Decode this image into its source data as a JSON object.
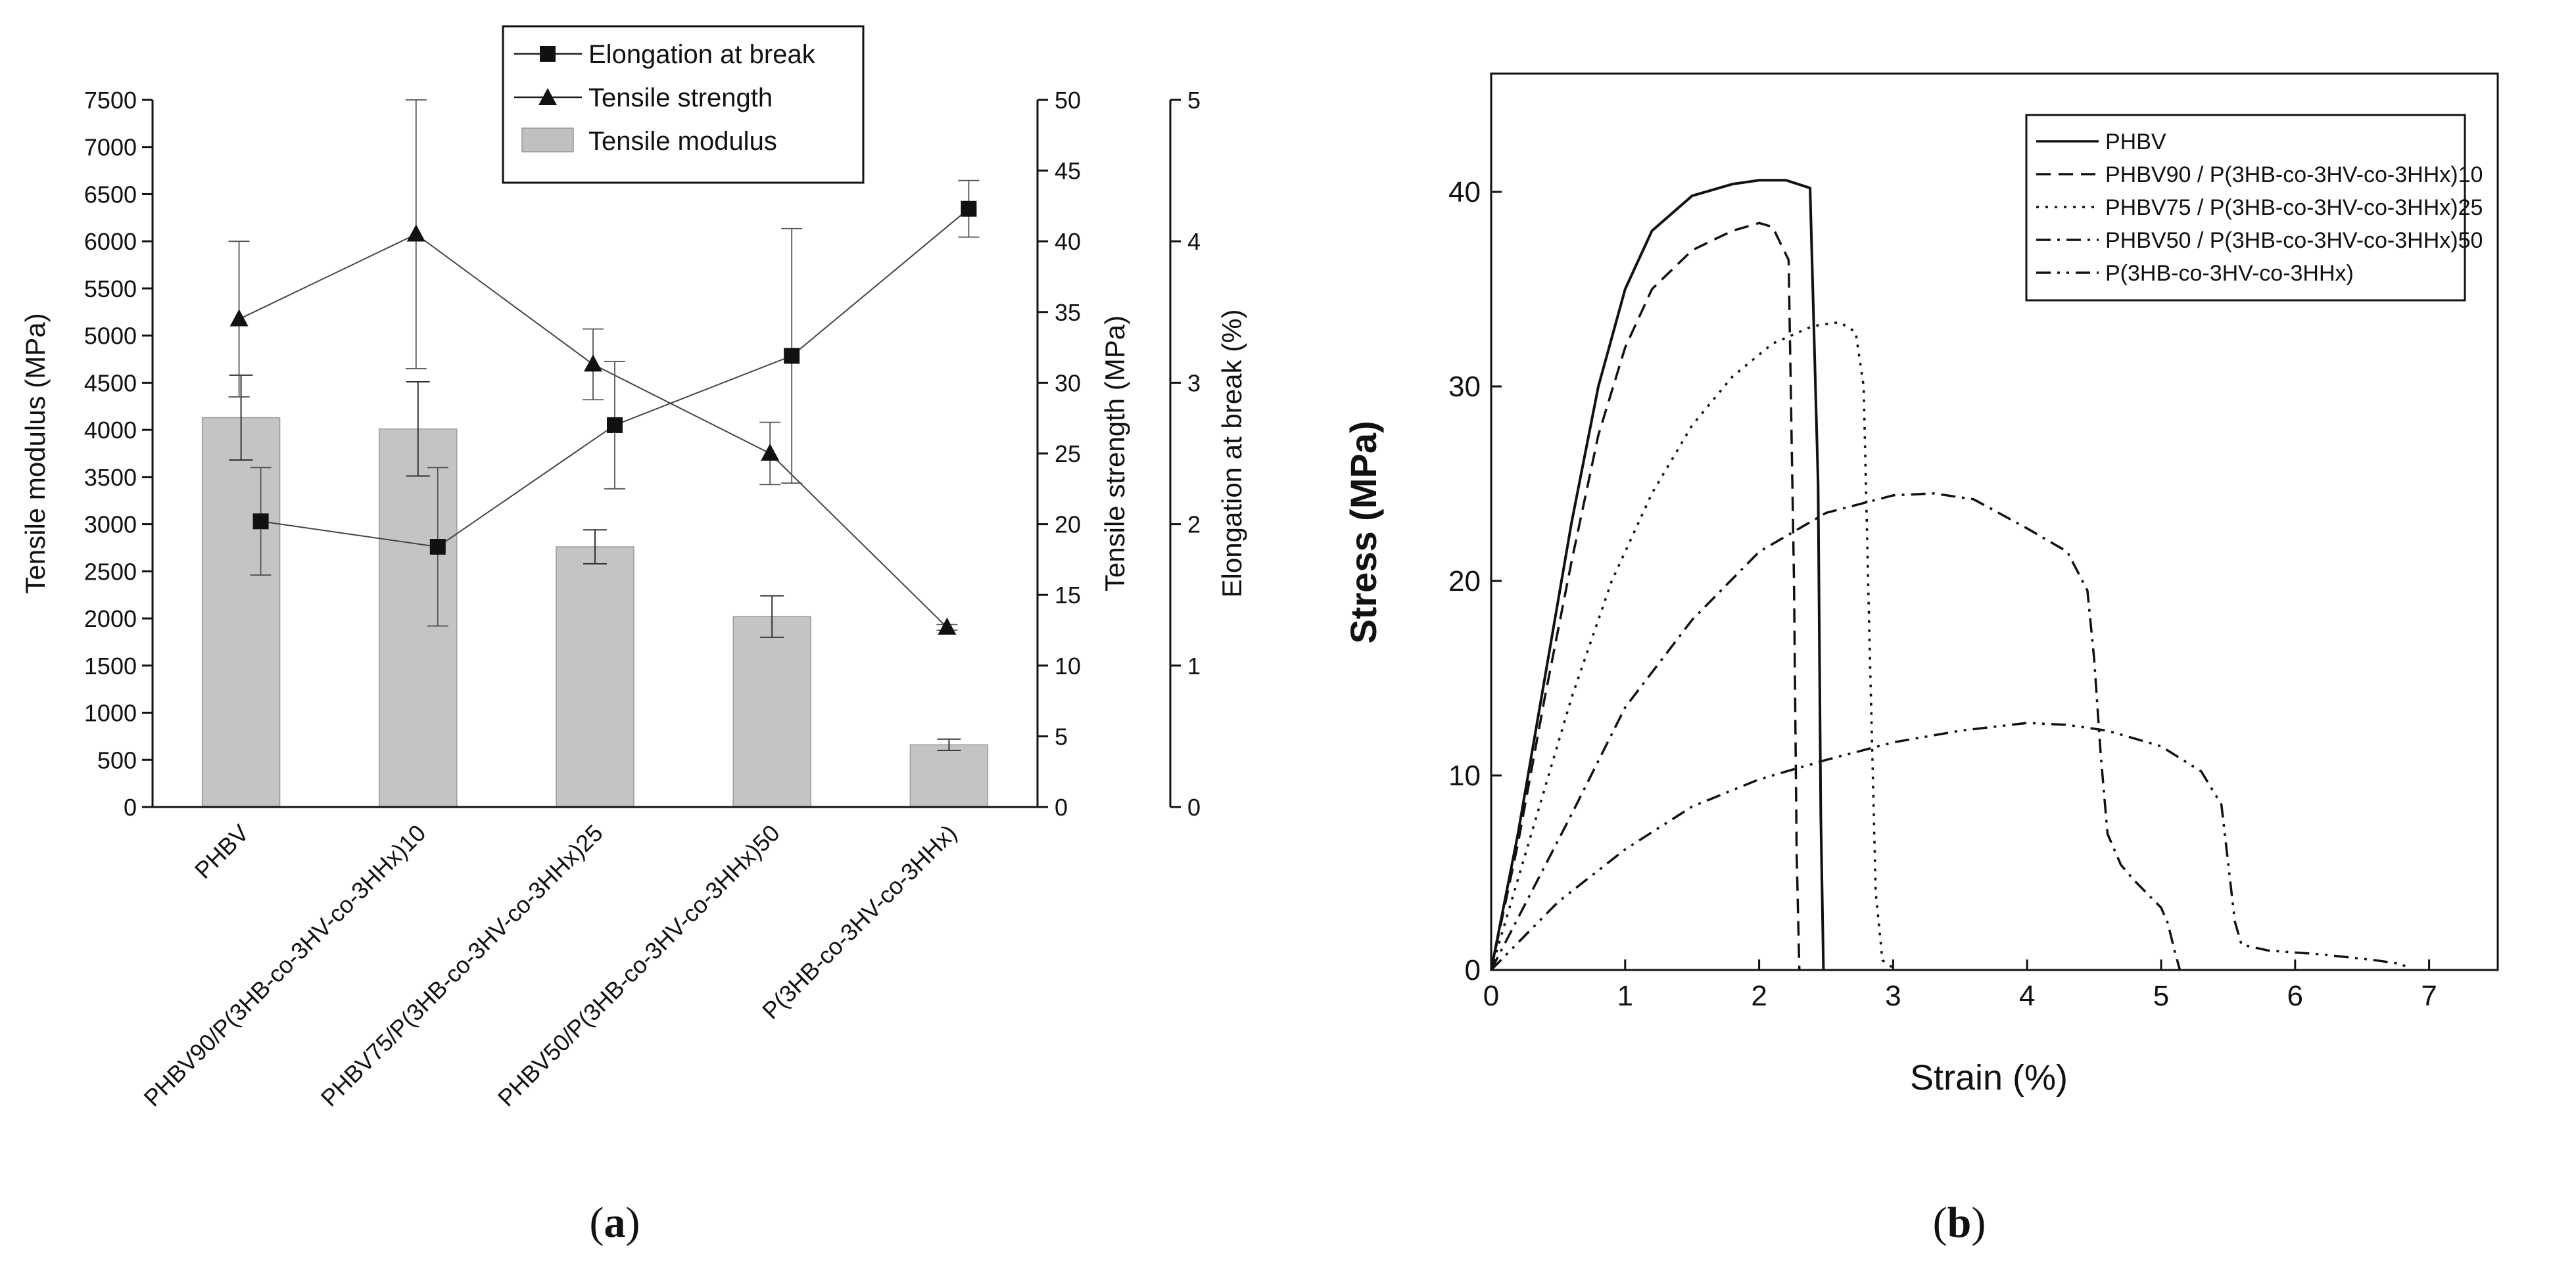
{
  "chart_data": [
    {
      "type": "bar",
      "panel_label": "(a)",
      "panel_letter": "a",
      "categories": [
        "PHBV",
        "PHBV90/P(3HB-co-3HV-co-3HHx)10",
        "PHBV75/P(3HB-co-3HV-co-3HHx)25",
        "PHBV50/P(3HB-co-3HV-co-3HHx)50",
        "P(3HB-co-3HV-co-3HHx)"
      ],
      "axes": {
        "left": {
          "label": "Tensile modulus (MPa)",
          "min": 0,
          "max": 7500,
          "ticks": [
            0,
            500,
            1000,
            1500,
            2000,
            2500,
            3000,
            3500,
            4000,
            4500,
            5000,
            5500,
            6000,
            6500,
            7000,
            7500
          ]
        },
        "right1": {
          "label": "Tensile strength (MPa)",
          "min": 0,
          "max": 50,
          "ticks": [
            0,
            5,
            10,
            15,
            20,
            25,
            30,
            35,
            40,
            45,
            50
          ]
        },
        "right2": {
          "label": "Elongation at break (%)",
          "min": 0,
          "max": 5,
          "ticks": [
            0,
            1,
            2,
            3,
            4,
            5
          ]
        }
      },
      "legend": {
        "position": "top",
        "items": [
          "Elongation at break",
          "Tensile strength",
          "Tensile modulus"
        ]
      },
      "series": [
        {
          "name": "Tensile modulus",
          "kind": "bar",
          "axis": "left",
          "values": [
            4130,
            4010,
            2760,
            2020,
            660
          ],
          "errors": [
            450,
            500,
            180,
            220,
            60
          ]
        },
        {
          "name": "Tensile strength",
          "kind": "line",
          "marker": "triangle",
          "axis": "right1",
          "values": [
            34.5,
            40.5,
            31.3,
            25.0,
            12.7
          ],
          "errors": [
            5.5,
            9.5,
            2.5,
            2.2,
            0.2
          ]
        },
        {
          "name": "Elongation at break",
          "kind": "line",
          "marker": "square",
          "axis": "right2",
          "values": [
            2.02,
            1.84,
            2.7,
            3.19,
            4.23
          ],
          "errors": [
            0.38,
            0.56,
            0.45,
            0.9,
            0.2
          ]
        }
      ]
    },
    {
      "type": "line",
      "panel_label": "(b)",
      "panel_letter": "b",
      "xlabel": "Strain (%)",
      "ylabel": "Stress (MPa)",
      "xlim": [
        0,
        7.5
      ],
      "ylim": [
        0,
        46
      ],
      "xticks": [
        0,
        1,
        2,
        3,
        4,
        5,
        6,
        7
      ],
      "yticks": [
        0,
        10,
        20,
        30,
        40
      ],
      "legend": {
        "position": "top-right"
      },
      "series": [
        {
          "name": "PHBV",
          "dash": "solid",
          "x": [
            0,
            0.2,
            0.4,
            0.6,
            0.8,
            1.0,
            1.2,
            1.5,
            1.8,
            2.0,
            2.2,
            2.38,
            2.44,
            2.46,
            2.48
          ],
          "y": [
            0,
            7,
            15,
            23,
            30,
            35,
            38,
            39.8,
            40.4,
            40.6,
            40.6,
            40.2,
            25,
            8,
            0
          ]
        },
        {
          "name": "PHBV90 / P(3HB-co-3HV-co-3HHx)10",
          "dash": "dash",
          "x": [
            0,
            0.2,
            0.4,
            0.6,
            0.8,
            1.0,
            1.2,
            1.5,
            1.8,
            2.0,
            2.1,
            2.22,
            2.26,
            2.28,
            2.3
          ],
          "y": [
            0,
            6.5,
            14,
            21,
            27.5,
            32,
            35,
            37,
            38,
            38.4,
            38.2,
            36.5,
            20,
            6,
            0
          ]
        },
        {
          "name": "PHBV75 / P(3HB-co-3HV-co-3HHx)25",
          "dash": "dot",
          "x": [
            0,
            0.3,
            0.6,
            0.9,
            1.2,
            1.5,
            1.8,
            2.1,
            2.4,
            2.6,
            2.72,
            2.78,
            2.82,
            2.87,
            2.92,
            3.0
          ],
          "y": [
            0,
            7,
            14,
            20,
            24.5,
            28,
            30.5,
            32.2,
            33.1,
            33.3,
            32.8,
            30,
            18,
            4,
            0.5,
            0.1
          ]
        },
        {
          "name": "PHBV50 / P(3HB-co-3HV-co-3HHx)50",
          "dash": "dashdot",
          "x": [
            0,
            0.3,
            0.6,
            1.0,
            1.5,
            2.0,
            2.5,
            3.0,
            3.3,
            3.6,
            4.0,
            4.3,
            4.45,
            4.5,
            4.55,
            4.6,
            4.7,
            4.8,
            4.9,
            5.0,
            5.05,
            5.1,
            5.14
          ],
          "y": [
            0,
            4,
            8,
            13.5,
            18,
            21.5,
            23.5,
            24.4,
            24.5,
            24.2,
            22.7,
            21.5,
            19.5,
            16,
            11,
            7,
            5.4,
            4.6,
            3.9,
            3.2,
            2.4,
            1,
            0
          ]
        },
        {
          "name": "P(3HB-co-3HV-co-3HHx)",
          "dash": "dashdotdot",
          "x": [
            0,
            0.5,
            1.0,
            1.5,
            2.0,
            2.5,
            3.0,
            3.5,
            4.0,
            4.3,
            4.6,
            5.0,
            5.3,
            5.45,
            5.5,
            5.55,
            5.6,
            5.8,
            6.2,
            6.6,
            6.8,
            6.85
          ],
          "y": [
            0,
            3.5,
            6.2,
            8.4,
            9.8,
            10.8,
            11.7,
            12.3,
            12.7,
            12.6,
            12.3,
            11.5,
            10.2,
            8.5,
            5.5,
            2.5,
            1.3,
            1.0,
            0.8,
            0.5,
            0.3,
            0
          ]
        }
      ]
    }
  ]
}
